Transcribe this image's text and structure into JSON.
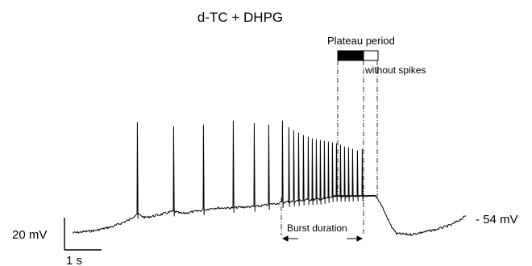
{
  "figure": {
    "title": "d-TC + DHPG",
    "plateau_label": "Plateau period",
    "without_spikes_label": "without spikes",
    "burst_label": "Burst duration",
    "voltage_scale_label": "20 mV",
    "time_scale_label": "1 s",
    "resting_potential_label": "- 54 mV",
    "trace_color": "#000000",
    "plateau_with_spikes_color": "#000000",
    "plateau_without_spikes_color": "#ffffff"
  }
}
